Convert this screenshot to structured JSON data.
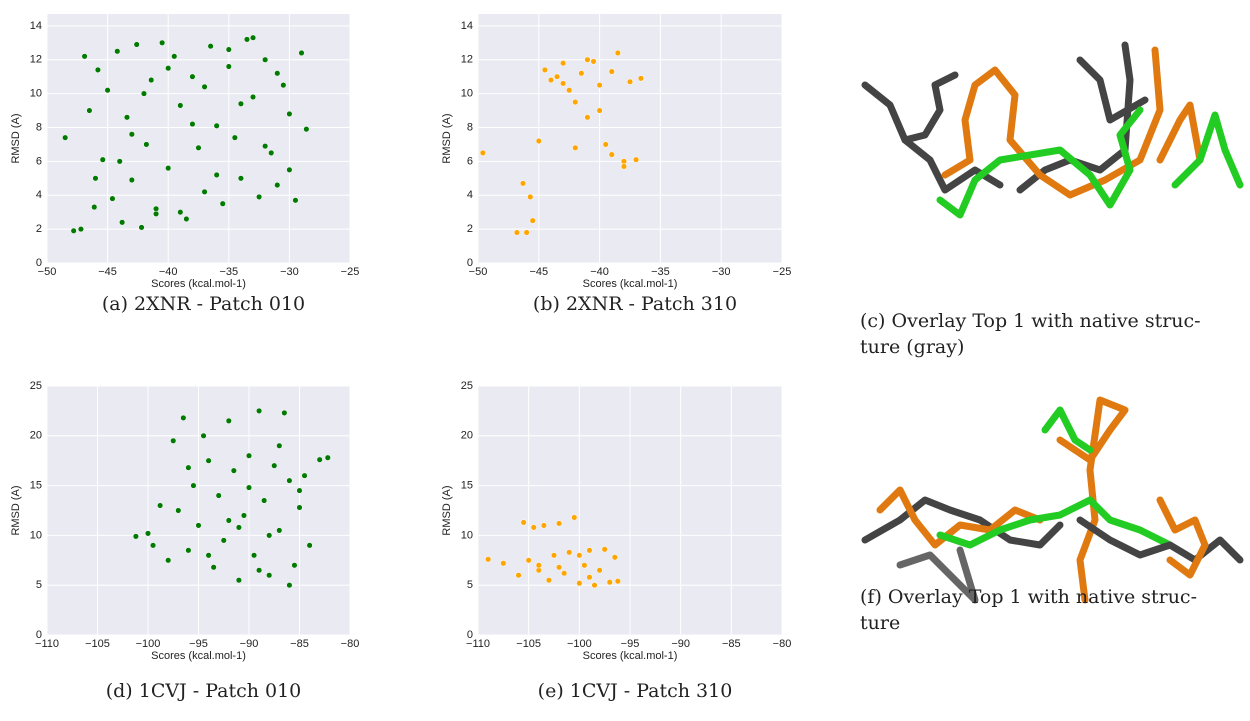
{
  "chart_data": [
    {
      "type": "scatter",
      "caption": "(a) 2XNR - Patch 010",
      "x_label": "Scores (kcal.mol-1)",
      "y_label": "RMSD (A)",
      "color": "#007a00",
      "xlim": [
        -50,
        -25
      ],
      "ylim": [
        0,
        14.7
      ],
      "xticks": [
        {
          "value": -50,
          "label": "−50"
        },
        {
          "value": -45,
          "label": "−45"
        },
        {
          "value": -40,
          "label": "−40"
        },
        {
          "value": -35,
          "label": "−35"
        },
        {
          "value": -30,
          "label": "−30"
        },
        {
          "value": -25,
          "label": "−25"
        }
      ],
      "yticks": [
        0,
        2,
        4,
        6,
        8,
        10,
        12,
        14
      ],
      "x": [
        -48.5,
        -47.8,
        -47.2,
        -46.9,
        -46.5,
        -46.1,
        -45.8,
        -45.4,
        -45.0,
        -44.6,
        -44.2,
        -43.8,
        -43.4,
        -43.0,
        -42.6,
        -42.2,
        -41.8,
        -41.4,
        -41.0,
        -40.5,
        -40.0,
        -39.5,
        -39.0,
        -38.5,
        -38.0,
        -37.5,
        -37.0,
        -36.5,
        -36.0,
        -35.5,
        -35.0,
        -34.5,
        -34.0,
        -33.5,
        -33.0,
        -32.5,
        -32.0,
        -31.5,
        -31.0,
        -30.5,
        -30.0,
        -29.5,
        -29.0,
        -28.6,
        -44.0,
        -42.0,
        -40.0,
        -38.0,
        -36.0,
        -34.0,
        -32.0,
        -30.0,
        -46.0,
        -43.0,
        -39.0,
        -35.0,
        -31.0,
        -41.0,
        -37.0,
        -33.0
      ],
      "values": [
        7.4,
        1.9,
        2.0,
        12.2,
        9.0,
        3.3,
        11.4,
        6.1,
        10.2,
        3.8,
        12.5,
        2.4,
        8.6,
        4.9,
        12.9,
        2.1,
        7.0,
        10.8,
        3.2,
        13.0,
        5.6,
        12.2,
        9.3,
        2.6,
        11.0,
        6.8,
        4.2,
        12.8,
        8.1,
        3.5,
        11.6,
        7.4,
        5.0,
        13.2,
        9.8,
        3.9,
        12.0,
        6.5,
        4.6,
        10.5,
        8.8,
        3.7,
        12.4,
        7.9,
        6.0,
        10.0,
        11.5,
        8.2,
        5.2,
        9.4,
        6.9,
        5.5,
        5.0,
        7.6,
        3.0,
        12.6,
        11.2,
        2.9,
        10.4,
        13.3
      ]
    },
    {
      "type": "scatter",
      "caption": "(b) 2XNR - Patch 310",
      "x_label": "Scores (kcal.mol-1)",
      "y_label": "RMSD (A)",
      "color": "#ffa500",
      "xlim": [
        -50,
        -25
      ],
      "ylim": [
        0,
        14.7
      ],
      "xticks": [
        {
          "value": -50,
          "label": "−50"
        },
        {
          "value": -45,
          "label": "−45"
        },
        {
          "value": -40,
          "label": "−40"
        },
        {
          "value": -35,
          "label": "−35"
        },
        {
          "value": -30,
          "label": "−30"
        },
        {
          "value": -25,
          "label": "−25"
        }
      ],
      "yticks": [
        0,
        2,
        4,
        6,
        8,
        10,
        12,
        14
      ],
      "x": [
        -49.6,
        -46.8,
        -46.3,
        -46.0,
        -45.7,
        -45.5,
        -45.0,
        -44.5,
        -44.0,
        -43.5,
        -43.0,
        -42.5,
        -42.0,
        -41.5,
        -41.0,
        -40.5,
        -40.0,
        -39.5,
        -39.0,
        -38.5,
        -38.0,
        -37.5,
        -37.0,
        -36.6,
        -42.0,
        -40.0,
        -39.0,
        -38.0,
        -41.0,
        -43.0
      ],
      "values": [
        6.5,
        1.8,
        4.7,
        1.8,
        3.9,
        2.5,
        7.2,
        11.4,
        10.8,
        11.0,
        11.8,
        10.2,
        9.5,
        11.2,
        8.6,
        11.9,
        10.5,
        7.0,
        11.3,
        12.4,
        6.0,
        10.7,
        6.1,
        10.9,
        6.8,
        9.0,
        6.4,
        5.7,
        12.0,
        10.6
      ]
    },
    {
      "type": "scatter",
      "caption": "(d) 1CVJ - Patch 010",
      "x_label": "Scores (kcal.mol-1)",
      "y_label": "RMSD (A)",
      "color": "#007a00",
      "xlim": [
        -110,
        -80
      ],
      "ylim": [
        0,
        25
      ],
      "xticks": [
        {
          "value": -110,
          "label": "−110"
        },
        {
          "value": -105,
          "label": "−105"
        },
        {
          "value": -100,
          "label": "−100"
        },
        {
          "value": -95,
          "label": "−95"
        },
        {
          "value": -90,
          "label": "−90"
        },
        {
          "value": -85,
          "label": "−85"
        },
        {
          "value": -80,
          "label": "−80"
        }
      ],
      "yticks": [
        0,
        5,
        10,
        15,
        20,
        25
      ],
      "x": [
        -101.2,
        -100.0,
        -99.5,
        -98.8,
        -98.0,
        -97.5,
        -97.0,
        -96.5,
        -96.0,
        -95.5,
        -95.0,
        -94.5,
        -94.0,
        -93.5,
        -93.0,
        -92.5,
        -92.0,
        -91.5,
        -91.0,
        -90.5,
        -90.0,
        -89.5,
        -89.0,
        -88.5,
        -88.0,
        -87.5,
        -87.0,
        -86.5,
        -86.0,
        -85.5,
        -85.0,
        -84.5,
        -84.0,
        -83.0,
        -82.2,
        -92.0,
        -90.0,
        -88.0,
        -86.0,
        -94.0,
        -96.0,
        -89.0,
        -87.0,
        -91.0,
        -85.0
      ],
      "values": [
        9.9,
        10.2,
        9.0,
        13.0,
        7.5,
        19.5,
        12.5,
        21.8,
        8.5,
        15.0,
        11.0,
        20.0,
        17.5,
        6.8,
        14.0,
        9.5,
        21.5,
        16.5,
        5.5,
        12.0,
        18.0,
        8.0,
        22.5,
        13.5,
        6.0,
        17.0,
        10.5,
        22.3,
        15.5,
        7.0,
        12.8,
        16.0,
        9.0,
        17.6,
        17.8,
        11.5,
        14.8,
        10.0,
        5.0,
        8.0,
        16.8,
        6.5,
        19.0,
        10.8,
        14.5
      ]
    },
    {
      "type": "scatter",
      "caption": "(e) 1CVJ - Patch 310",
      "x_label": "Scores (kcal.mol-1)",
      "y_label": "RMSD (A)",
      "color": "#ffa500",
      "xlim": [
        -110,
        -80
      ],
      "ylim": [
        0,
        25
      ],
      "xticks": [
        {
          "value": -110,
          "label": "−110"
        },
        {
          "value": -105,
          "label": "−105"
        },
        {
          "value": -100,
          "label": "−100"
        },
        {
          "value": -95,
          "label": "−95"
        },
        {
          "value": -90,
          "label": "−90"
        },
        {
          "value": -85,
          "label": "−85"
        },
        {
          "value": -80,
          "label": "−80"
        }
      ],
      "yticks": [
        0,
        5,
        10,
        15,
        20,
        25
      ],
      "x": [
        -109.0,
        -107.5,
        -106.0,
        -105.5,
        -105.0,
        -104.5,
        -104.0,
        -103.5,
        -103.0,
        -102.5,
        -102.0,
        -101.5,
        -101.0,
        -100.5,
        -100.0,
        -99.5,
        -99.0,
        -98.5,
        -98.0,
        -97.5,
        -97.0,
        -96.5,
        -96.2,
        -104.0,
        -102.0,
        -100.0,
        -99.0
      ],
      "values": [
        7.6,
        7.2,
        6.0,
        11.3,
        7.5,
        10.8,
        6.5,
        11.0,
        5.5,
        8.0,
        11.2,
        6.2,
        8.3,
        11.8,
        5.2,
        7.0,
        8.5,
        5.0,
        6.5,
        8.6,
        5.3,
        7.8,
        5.4,
        7.0,
        6.8,
        8.0,
        5.8
      ]
    }
  ],
  "panels": [
    {
      "caption": [
        "(c) Overlay Top 1 with native struc-",
        "ture (gray)"
      ]
    },
    {
      "caption": [
        "(f) Overlay Top 1 with native struc-",
        "ture"
      ]
    }
  ]
}
